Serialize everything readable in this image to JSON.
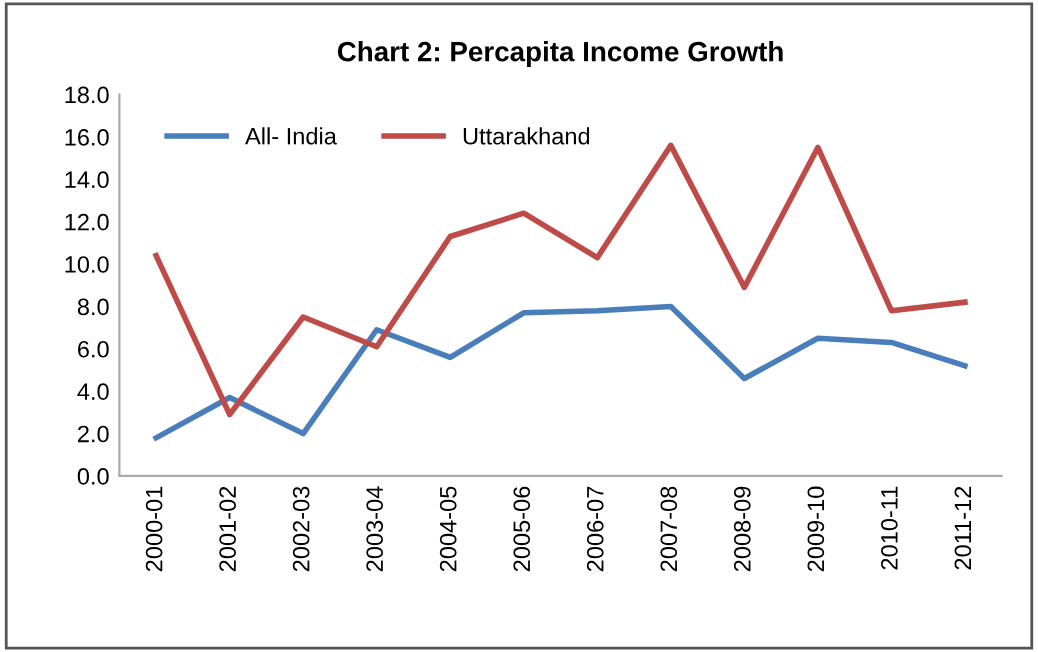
{
  "chart_data": {
    "type": "line",
    "title": "Chart 2: Percapita Income Growth",
    "categories": [
      "2000-01",
      "2001-02",
      "2002-03",
      "2003-04",
      "2004-05",
      "2005-06",
      "2006-07",
      "2007-08",
      "2008-09",
      "2009-10",
      "2010-11",
      "2011-12"
    ],
    "series": [
      {
        "name": "All- India",
        "color": "#4a7ebb",
        "values": [
          1.8,
          3.7,
          2.0,
          6.9,
          5.6,
          7.7,
          7.8,
          8.0,
          4.6,
          6.5,
          6.3,
          5.2
        ]
      },
      {
        "name": "Uttarakhand",
        "color": "#be4b48",
        "values": [
          10.4,
          2.9,
          7.5,
          6.1,
          11.3,
          12.4,
          10.3,
          15.6,
          8.9,
          15.5,
          7.8,
          8.2
        ]
      }
    ],
    "ylim": [
      0,
      18
    ],
    "yticks": [
      {
        "value": 0,
        "label": "0.0"
      },
      {
        "value": 2,
        "label": "2.0"
      },
      {
        "value": 4,
        "label": "4.0"
      },
      {
        "value": 6,
        "label": "6.0"
      },
      {
        "value": 8,
        "label": "8.0"
      },
      {
        "value": 10,
        "label": "10.0"
      },
      {
        "value": 12,
        "label": "12.0"
      },
      {
        "value": 14,
        "label": "14.0"
      },
      {
        "value": 16,
        "label": "16.0"
      },
      {
        "value": 18,
        "label": "18.0"
      }
    ],
    "grid": false,
    "legend": "top left",
    "marker": "none",
    "line_style": "solid"
  }
}
